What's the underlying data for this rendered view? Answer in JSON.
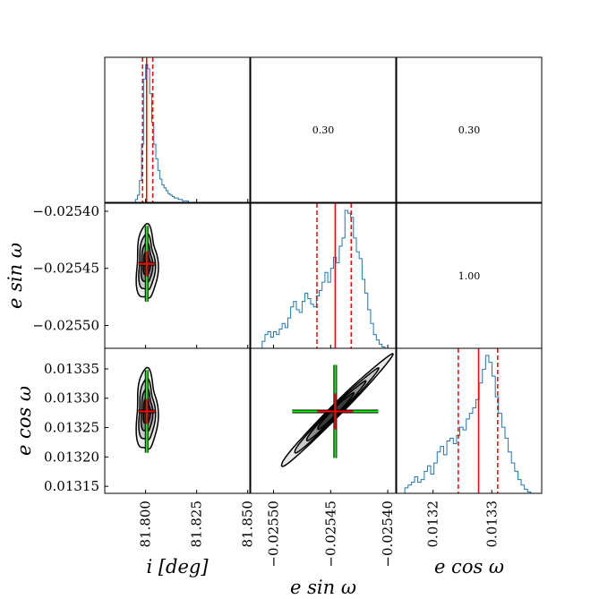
{
  "chart_data": {
    "type": "corner",
    "variables": [
      {
        "key": "i",
        "label": "i [deg]",
        "ticks": [
          "81.800",
          "81.825",
          "81.850"
        ],
        "tick_values": [
          81.8,
          81.825,
          81.85
        ],
        "range": [
          81.78,
          81.851
        ]
      },
      {
        "key": "esinw",
        "label": "e sin ω",
        "ticks": [
          "−0.02550",
          "−0.02545",
          "−0.02540"
        ],
        "tick_values": [
          -0.0255,
          -0.02545,
          -0.0254
        ],
        "range": [
          -0.02552,
          -0.025393
        ]
      },
      {
        "key": "ecosw",
        "label": "e cos ω",
        "ticks": [
          "0.0132",
          "0.0133"
        ],
        "tick_values": [
          0.0132,
          0.0133
        ],
        "range": [
          0.013138,
          0.013385
        ]
      }
    ],
    "ecosw_y_ticks": [
      "0.01315",
      "0.01320",
      "0.01325",
      "0.01330",
      "0.01335"
    ],
    "ecosw_y_tick_values": [
      0.01315,
      0.0132,
      0.01325,
      0.0133,
      0.01335
    ],
    "correlations": [
      {
        "row": 0,
        "col": 1,
        "text": "0.30"
      },
      {
        "row": 0,
        "col": 2,
        "text": "0.30"
      },
      {
        "row": 1,
        "col": 2,
        "text": "1.00"
      }
    ],
    "medians": {
      "i": 81.8005,
      "esinw": -0.025446,
      "ecosw": 0.0132775
    },
    "quantiles": {
      "i": [
        81.7985,
        81.8035
      ],
      "esinw": [
        -0.025462,
        -0.025432
      ],
      "ecosw": [
        0.013243,
        0.01331
      ]
    },
    "histograms": {
      "i": {
        "x0": 81.795,
        "dx": 0.001,
        "counts": [
          2,
          5,
          15,
          40,
          85,
          95,
          92,
          75,
          55,
          40,
          30,
          22,
          16,
          12,
          10,
          8,
          6,
          5,
          4,
          3,
          3,
          2,
          2,
          1,
          1,
          1,
          0
        ]
      },
      "esinw": {
        "x0": -0.02551,
        "dx": 2.5e-06,
        "counts": [
          5,
          10,
          12,
          8,
          12,
          10,
          14,
          18,
          15,
          22,
          30,
          34,
          28,
          26,
          34,
          40,
          36,
          32,
          30,
          38,
          42,
          48,
          55,
          48,
          58,
          66,
          62,
          74,
          80,
          100,
          98,
          95,
          80,
          70,
          65,
          50,
          40,
          28,
          18,
          10,
          6,
          3,
          1
        ]
      },
      "ecosw": {
        "x0": 0.013152,
        "dx": 5.5e-06,
        "counts": [
          4,
          6,
          8,
          12,
          8,
          10,
          16,
          20,
          14,
          22,
          30,
          34,
          28,
          38,
          40,
          36,
          42,
          48,
          46,
          54,
          58,
          62,
          68,
          80,
          90,
          100,
          95,
          85,
          70,
          58,
          48,
          40,
          30,
          22,
          16,
          10,
          6,
          3,
          1
        ]
      }
    },
    "density_levels": [
      0.12,
      0.3,
      0.55,
      0.8
    ],
    "level_colors": [
      "#ffffff",
      "#eaeaea",
      "#c8c8c8",
      "#8c8c8c",
      "#3a3a3a"
    ],
    "line_color": "#1f77b4",
    "median_color": "#ff0000",
    "cross_color": "#00ff00",
    "outline_color": "#000000"
  }
}
